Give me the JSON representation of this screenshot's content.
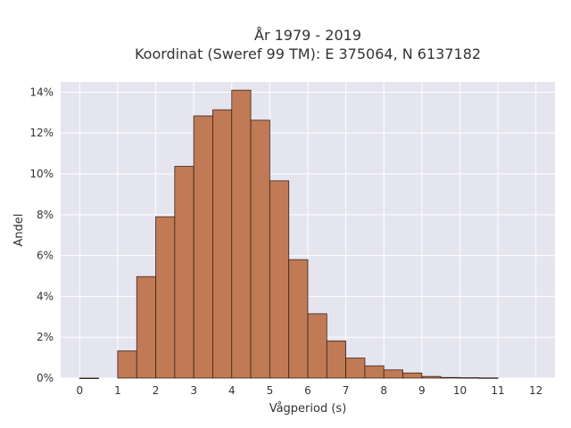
{
  "chart_data": {
    "type": "bar",
    "title": "År 1979 - 2019",
    "subtitle": "Koordinat (Sweref 99 TM): E 375064, N 6137182",
    "xlabel": "Vågperiod (s)",
    "ylabel": "Andel",
    "xlim": [
      -0.5,
      12.5
    ],
    "ylim": [
      0,
      0.145
    ],
    "xticks": [
      0,
      1,
      2,
      3,
      4,
      5,
      6,
      7,
      8,
      9,
      10,
      11,
      12
    ],
    "yticks": [
      0,
      0.02,
      0.04,
      0.06,
      0.08,
      0.1,
      0.12,
      0.14
    ],
    "ytick_labels": [
      "0%",
      "2%",
      "4%",
      "6%",
      "8%",
      "10%",
      "12%",
      "14%"
    ],
    "bin_width": 0.5,
    "bins": [
      {
        "start": 0.0,
        "value": 0.0
      },
      {
        "start": 1.0,
        "value": 0.0133
      },
      {
        "start": 1.5,
        "value": 0.0497
      },
      {
        "start": 2.0,
        "value": 0.079
      },
      {
        "start": 2.5,
        "value": 0.1037
      },
      {
        "start": 3.0,
        "value": 0.1284
      },
      {
        "start": 3.5,
        "value": 0.1314
      },
      {
        "start": 4.0,
        "value": 0.141
      },
      {
        "start": 4.5,
        "value": 0.1263
      },
      {
        "start": 5.0,
        "value": 0.0966
      },
      {
        "start": 5.5,
        "value": 0.058
      },
      {
        "start": 6.0,
        "value": 0.0315
      },
      {
        "start": 6.5,
        "value": 0.0182
      },
      {
        "start": 7.0,
        "value": 0.0098
      },
      {
        "start": 7.5,
        "value": 0.006
      },
      {
        "start": 8.0,
        "value": 0.004
      },
      {
        "start": 8.5,
        "value": 0.0025
      },
      {
        "start": 9.0,
        "value": 0.0008
      },
      {
        "start": 9.5,
        "value": 0.0003
      },
      {
        "start": 10.0,
        "value": 0.0002
      },
      {
        "start": 10.5,
        "value": 0.0001
      }
    ],
    "grid": true,
    "colors": {
      "bar_fill": "#c07a55",
      "bar_edge": "#3a2418",
      "plot_background": "#e5e5f0",
      "grid": "#ffffff"
    }
  }
}
